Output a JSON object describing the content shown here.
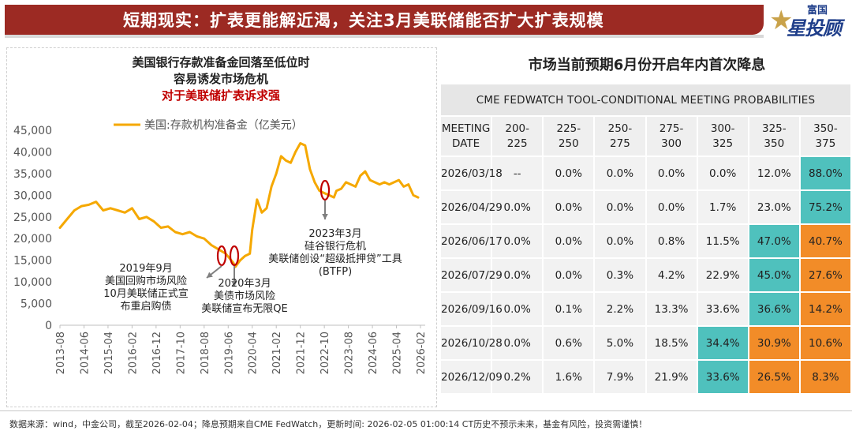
{
  "header": {
    "title": "短期现实：扩表更能解近渴，关注3月美联储能否扩大扩表规模",
    "logo_small": "富国",
    "logo_big": "星投顾"
  },
  "left": {
    "title_line1": "美国银行存款准备金回落至低位时",
    "title_line2": "容易诱发市场危机",
    "title_line3": "对于美联储扩表诉求强"
  },
  "chart_data": {
    "type": "line",
    "series": [
      {
        "name": "美国:存款机构准备金（亿美元）",
        "color": "#f5a800",
        "x": [
          "2013-08",
          "2013-11",
          "2014-02",
          "2014-05",
          "2014-08",
          "2014-11",
          "2015-02",
          "2015-05",
          "2015-08",
          "2015-11",
          "2016-02",
          "2016-05",
          "2016-08",
          "2016-11",
          "2017-02",
          "2017-05",
          "2017-08",
          "2017-11",
          "2018-02",
          "2018-05",
          "2018-08",
          "2018-11",
          "2019-02",
          "2019-05",
          "2019-08",
          "2019-09",
          "2019-11",
          "2020-01",
          "2020-03",
          "2020-04",
          "2020-06",
          "2020-08",
          "2020-10",
          "2020-12",
          "2021-02",
          "2021-04",
          "2021-06",
          "2021-08",
          "2021-10",
          "2021-12",
          "2022-02",
          "2022-04",
          "2022-06",
          "2022-08",
          "2022-10",
          "2022-12",
          "2023-02",
          "2023-03",
          "2023-05",
          "2023-07",
          "2023-09",
          "2023-11",
          "2024-01",
          "2024-03",
          "2024-05",
          "2024-07",
          "2024-09",
          "2024-11",
          "2025-01",
          "2025-03",
          "2025-05",
          "2025-07",
          "2025-09",
          "2025-11",
          "2026-01"
        ],
        "values": [
          22500,
          24500,
          26500,
          27500,
          27800,
          28500,
          26500,
          27000,
          26500,
          26000,
          27000,
          24500,
          25000,
          24000,
          22500,
          22800,
          21500,
          21000,
          21500,
          20500,
          20000,
          18500,
          17500,
          16500,
          14500,
          13500,
          15000,
          16000,
          16500,
          22000,
          29000,
          26000,
          27000,
          32000,
          35000,
          39000,
          38000,
          37500,
          40000,
          42000,
          41500,
          36000,
          33000,
          31000,
          30500,
          30000,
          29500,
          31000,
          31500,
          33000,
          32500,
          32000,
          34500,
          35500,
          33500,
          33000,
          32500,
          33000,
          32500,
          33000,
          33500,
          32000,
          32500,
          30000,
          29500
        ]
      }
    ],
    "ylim": [
      0,
      45000
    ],
    "yticks": [
      "45,000",
      "40,000",
      "35,000",
      "30,000",
      "25,000",
      "20,000",
      "15,000",
      "10,000",
      "5,000",
      "0"
    ],
    "xticks": [
      "2013-08",
      "2014-06",
      "2015-04",
      "2016-02",
      "2016-12",
      "2017-10",
      "2018-08",
      "2019-06",
      "2020-04",
      "2021-02",
      "2021-12",
      "2022-10",
      "2023-08",
      "2024-06",
      "2025-04",
      "2026-02"
    ],
    "legend_position": "top",
    "grid": false,
    "annotations": [
      {
        "date": "2019-09",
        "value": 15000,
        "lines": [
          "2019年9月",
          "美国回购市场风险",
          "10月美联储正式宣",
          "布重启购债"
        ]
      },
      {
        "date": "2020-03",
        "value": 15000,
        "lines": [
          "2020年3月",
          "美债市场风险",
          "美联储宣布无限QE"
        ]
      },
      {
        "date": "2023-03",
        "value": 31000,
        "lines": [
          "2023年3月",
          "硅谷银行危机",
          "美联储创设“超级抵押贷”工具",
          "(BTFP)"
        ]
      }
    ]
  },
  "right": {
    "title": "市场当前预期6月份开启年内首次降息",
    "tool_header": "CME FEDWATCH TOOL-CONDITIONAL MEETING PROBABILITIES",
    "col0_line1": "MEETING",
    "col0_line2": "DATE",
    "columns": [
      {
        "l1": "200-",
        "l2": "225"
      },
      {
        "l1": "225-",
        "l2": "250"
      },
      {
        "l1": "250-",
        "l2": "275"
      },
      {
        "l1": "275-",
        "l2": "300"
      },
      {
        "l1": "300-",
        "l2": "325"
      },
      {
        "l1": "325-",
        "l2": "350"
      },
      {
        "l1": "350-",
        "l2": "375"
      }
    ],
    "highlight_colors": {
      "teal": "#4fc1bd",
      "orange": "#f28c28"
    },
    "rows": [
      {
        "date": "2026/03/18",
        "cells": [
          [
            "--",
            ""
          ],
          [
            "0.0%",
            ""
          ],
          [
            "0.0%",
            ""
          ],
          [
            "0.0%",
            ""
          ],
          [
            "0.0%",
            ""
          ],
          [
            "12.0%",
            ""
          ],
          [
            "88.0%",
            "teal"
          ]
        ]
      },
      {
        "date": "2026/04/29",
        "cells": [
          [
            "0.0%",
            ""
          ],
          [
            "0.0%",
            ""
          ],
          [
            "0.0%",
            ""
          ],
          [
            "0.0%",
            ""
          ],
          [
            "1.7%",
            ""
          ],
          [
            "23.0%",
            ""
          ],
          [
            "75.2%",
            "teal"
          ]
        ]
      },
      {
        "date": "2026/06/17",
        "cells": [
          [
            "0.0%",
            ""
          ],
          [
            "0.0%",
            ""
          ],
          [
            "0.0%",
            ""
          ],
          [
            "0.8%",
            ""
          ],
          [
            "11.5%",
            ""
          ],
          [
            "47.0%",
            "teal"
          ],
          [
            "40.7%",
            "orange"
          ]
        ]
      },
      {
        "date": "2026/07/29",
        "cells": [
          [
            "0.0%",
            ""
          ],
          [
            "0.0%",
            ""
          ],
          [
            "0.3%",
            ""
          ],
          [
            "4.2%",
            ""
          ],
          [
            "22.9%",
            ""
          ],
          [
            "45.0%",
            "teal"
          ],
          [
            "27.6%",
            "orange"
          ]
        ]
      },
      {
        "date": "2026/09/16",
        "cells": [
          [
            "0.0%",
            ""
          ],
          [
            "0.1%",
            ""
          ],
          [
            "2.2%",
            ""
          ],
          [
            "13.3%",
            ""
          ],
          [
            "33.6%",
            ""
          ],
          [
            "36.6%",
            "teal"
          ],
          [
            "14.2%",
            "orange"
          ]
        ]
      },
      {
        "date": "2026/10/28",
        "cells": [
          [
            "0.0%",
            ""
          ],
          [
            "0.6%",
            ""
          ],
          [
            "5.0%",
            ""
          ],
          [
            "18.5%",
            ""
          ],
          [
            "34.4%",
            "teal"
          ],
          [
            "30.9%",
            "orange"
          ],
          [
            "10.6%",
            "orange"
          ]
        ]
      },
      {
        "date": "2026/12/09",
        "cells": [
          [
            "0.2%",
            ""
          ],
          [
            "1.6%",
            ""
          ],
          [
            "7.9%",
            ""
          ],
          [
            "21.9%",
            ""
          ],
          [
            "33.6%",
            "teal"
          ],
          [
            "26.5%",
            "orange"
          ],
          [
            "8.3%",
            "orange"
          ]
        ]
      }
    ]
  },
  "footer": {
    "text": "数据来源：wind，中金公司，截至2026-02-04；降息预期来自CME FedWatch，更新时间: 2026-02-05 01:00:14 CT历史不预示未来，基金有风险，投资需谨慎！"
  }
}
